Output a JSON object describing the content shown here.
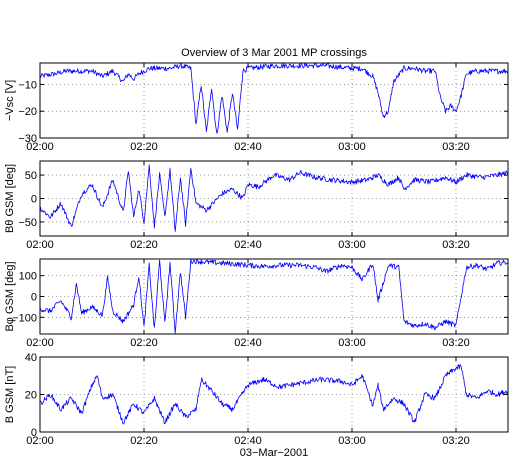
{
  "chart_data": {
    "type": "line",
    "title": "Overview of 3 Mar 2001 MP crossings",
    "xlabel": "03−Mar−2001",
    "x_range": [
      "02:00",
      "03:30"
    ],
    "x_ticks": [
      "02:00",
      "02:20",
      "02:40",
      "03:00",
      "03:20"
    ],
    "grid": "dotted",
    "line_color": "#0000ff",
    "panels": [
      {
        "ylabel": "−Vsc [V]",
        "ylim": [
          -30,
          -2
        ],
        "yticks": [
          -10,
          -20,
          -30
        ],
        "ytick_labels": [
          "−10",
          "−20",
          "−30"
        ],
        "series": [
          {
            "x": [
              "02:00",
              "02:03",
              "02:05",
              "02:07",
              "02:09",
              "02:10",
              "02:12",
              "02:14",
              "02:16",
              "02:17",
              "02:18",
              "02:19",
              "02:20",
              "02:21",
              "02:23",
              "02:25",
              "02:27",
              "02:29",
              "02:30",
              "02:31",
              "02:32",
              "02:33",
              "02:34",
              "02:35",
              "02:36",
              "02:37",
              "02:38",
              "02:39",
              "02:40",
              "02:45",
              "02:50",
              "02:55",
              "03:00",
              "03:02",
              "03:04",
              "03:05",
              "03:06",
              "03:07",
              "03:08",
              "03:10",
              "03:12",
              "03:14",
              "03:16",
              "03:17",
              "03:18",
              "03:19",
              "03:20",
              "03:21",
              "03:22",
              "03:24",
              "03:26",
              "03:30"
            ],
            "y": [
              -7,
              -6,
              -5,
              -5,
              -5,
              -5,
              -7,
              -5,
              -9,
              -6,
              -8,
              -6,
              -5,
              -4,
              -4,
              -4,
              -3,
              -4,
              -25,
              -10,
              -28,
              -11,
              -29,
              -14,
              -28,
              -13,
              -27,
              -5,
              -4,
              -3,
              -3,
              -3,
              -4,
              -4,
              -7,
              -13,
              -22,
              -20,
              -9,
              -4,
              -4,
              -5,
              -5,
              -15,
              -20,
              -18,
              -20,
              -14,
              -6,
              -5,
              -5,
              -5
            ]
          }
        ]
      },
      {
        "ylabel": "Bθ GSM [deg]",
        "ylim": [
          -80,
          80
        ],
        "yticks": [
          50,
          0,
          -50
        ],
        "ytick_labels": [
          "50",
          "0",
          "−50"
        ],
        "series": [
          {
            "x": [
              "02:00",
              "02:02",
              "02:04",
              "02:06",
              "02:08",
              "02:10",
              "02:12",
              "02:14",
              "02:16",
              "02:17",
              "02:18",
              "02:19",
              "02:20",
              "02:21",
              "02:22",
              "02:23",
              "02:24",
              "02:25",
              "02:26",
              "02:27",
              "02:28",
              "02:29",
              "02:30",
              "02:32",
              "02:35",
              "02:37",
              "02:39",
              "02:40",
              "02:42",
              "02:45",
              "02:48",
              "02:50",
              "02:53",
              "02:56",
              "03:00",
              "03:03",
              "03:05",
              "03:07",
              "03:09",
              "03:10",
              "03:12",
              "03:15",
              "03:18",
              "03:20",
              "03:22",
              "03:25",
              "03:28",
              "03:30"
            ],
            "y": [
              -20,
              -40,
              -10,
              -60,
              10,
              30,
              -20,
              40,
              -30,
              60,
              -40,
              20,
              -50,
              70,
              -60,
              50,
              -40,
              60,
              -70,
              45,
              -55,
              65,
              -10,
              -25,
              10,
              20,
              0,
              30,
              25,
              50,
              40,
              55,
              45,
              40,
              35,
              40,
              50,
              30,
              45,
              20,
              40,
              35,
              45,
              35,
              50,
              45,
              50,
              55
            ]
          }
        ]
      },
      {
        "ylabel": "Bφ GSM [deg]",
        "ylim": [
          -180,
          180
        ],
        "yticks": [
          100,
          0,
          -100
        ],
        "ytick_labels": [
          "100",
          "0",
          "−100"
        ],
        "series": [
          {
            "x": [
              "02:00",
              "02:02",
              "02:04",
              "02:06",
              "02:07",
              "02:08",
              "02:10",
              "02:12",
              "02:13",
              "02:14",
              "02:16",
              "02:18",
              "02:19",
              "02:20",
              "02:21",
              "02:22",
              "02:23",
              "02:24",
              "02:25",
              "02:26",
              "02:27",
              "02:28",
              "02:29",
              "02:30",
              "02:32",
              "02:35",
              "02:38",
              "02:40",
              "02:43",
              "02:46",
              "02:50",
              "02:53",
              "02:55",
              "02:58",
              "03:00",
              "03:02",
              "03:04",
              "03:05",
              "03:07",
              "03:09",
              "03:10",
              "03:12",
              "03:14",
              "03:16",
              "03:18",
              "03:20",
              "03:22",
              "03:24",
              "03:26",
              "03:28",
              "03:30"
            ],
            "y": [
              -60,
              -70,
              -20,
              -100,
              60,
              -80,
              -50,
              -90,
              90,
              -70,
              -120,
              -40,
              100,
              -150,
              150,
              -160,
              170,
              -130,
              160,
              -170,
              120,
              -100,
              170,
              170,
              165,
              160,
              155,
              150,
              145,
              150,
              150,
              140,
              120,
              150,
              140,
              80,
              160,
              -20,
              150,
              140,
              -120,
              -140,
              -130,
              -150,
              -120,
              -140,
              140,
              150,
              130,
              160,
              165
            ]
          }
        ]
      },
      {
        "ylabel": "B GSM [nT]",
        "ylim": [
          0,
          40
        ],
        "yticks": [
          0,
          20,
          40
        ],
        "ytick_labels": [
          "0",
          "20",
          "40"
        ],
        "series": [
          {
            "x": [
              "02:00",
              "02:02",
              "02:04",
              "02:06",
              "02:08",
              "02:10",
              "02:11",
              "02:12",
              "02:14",
              "02:16",
              "02:18",
              "02:20",
              "02:22",
              "02:24",
              "02:26",
              "02:28",
              "02:30",
              "02:31",
              "02:33",
              "02:35",
              "02:37",
              "02:40",
              "02:43",
              "02:46",
              "02:50",
              "02:54",
              "02:58",
              "03:00",
              "03:02",
              "03:04",
              "03:05",
              "03:06",
              "03:08",
              "03:10",
              "03:12",
              "03:14",
              "03:16",
              "03:18",
              "03:19",
              "03:20",
              "03:21",
              "03:22",
              "03:24",
              "03:26",
              "03:28",
              "03:30"
            ],
            "y": [
              15,
              20,
              12,
              18,
              10,
              25,
              30,
              18,
              20,
              5,
              15,
              10,
              18,
              5,
              15,
              8,
              12,
              28,
              22,
              15,
              12,
              25,
              28,
              24,
              26,
              28,
              27,
              25,
              30,
              14,
              25,
              12,
              18,
              15,
              5,
              20,
              18,
              30,
              32,
              34,
              35,
              20,
              18,
              22,
              20,
              22
            ]
          }
        ]
      }
    ]
  }
}
